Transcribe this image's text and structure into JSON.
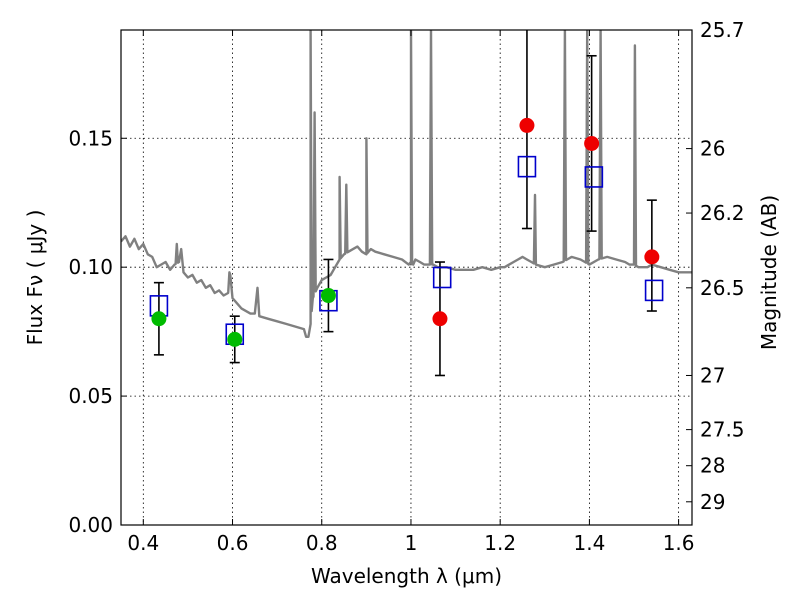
{
  "chart_data": {
    "type": "scatter",
    "xlabel": "Wavelength  λ (μm)",
    "ylabel": "Flux  Fν  ( μJy )",
    "ylabel_right": "Magnitude (AB)",
    "xlim": [
      0.35,
      1.63
    ],
    "ylim": [
      0.0,
      0.192
    ],
    "grid": true,
    "x_ticks": [
      0.4,
      0.6,
      0.8,
      1.0,
      1.2,
      1.4,
      1.6
    ],
    "x_tick_labels": [
      "0.4",
      "0.6",
      "0.8",
      "1",
      "1.2",
      "1.4",
      "1.6"
    ],
    "y_ticks": [
      0.0,
      0.05,
      0.1,
      0.15
    ],
    "y_tick_labels": [
      "0.00",
      "0.05",
      "0.10",
      "0.15"
    ],
    "right_ticks": [
      {
        "label": "25.7",
        "flux": 0.192
      },
      {
        "label": "26",
        "flux": 0.146
      },
      {
        "label": "26.2",
        "flux": 0.121
      },
      {
        "label": "26.5",
        "flux": 0.092
      },
      {
        "label": "27",
        "flux": 0.058
      },
      {
        "label": "27.5",
        "flux": 0.037
      },
      {
        "label": "28",
        "flux": 0.023
      },
      {
        "label": "29",
        "flux": 0.009
      }
    ],
    "series": [
      {
        "role": "template-spectrum",
        "color": "#808080",
        "x": [
          0.35,
          0.36,
          0.37,
          0.38,
          0.39,
          0.4,
          0.41,
          0.42,
          0.43,
          0.44,
          0.45,
          0.46,
          0.47,
          0.48,
          0.485,
          0.49,
          0.5,
          0.51,
          0.52,
          0.53,
          0.54,
          0.55,
          0.56,
          0.57,
          0.58,
          0.59,
          0.595,
          0.6,
          0.61,
          0.62,
          0.64,
          0.65,
          0.656,
          0.66,
          0.68,
          0.7,
          0.72,
          0.74,
          0.76,
          0.765,
          0.77,
          0.775,
          0.78,
          0.79,
          0.8,
          0.81,
          0.82,
          0.83,
          0.84,
          0.85,
          0.86,
          0.87,
          0.88,
          0.89,
          0.9,
          0.91,
          0.92,
          0.94,
          0.96,
          0.98,
          0.995,
          1.0,
          1.005,
          1.01,
          1.02,
          1.03,
          1.04,
          1.05,
          1.06,
          1.08,
          1.1,
          1.12,
          1.14,
          1.16,
          1.18,
          1.2,
          1.21,
          1.22,
          1.23,
          1.24,
          1.25,
          1.26,
          1.27,
          1.28,
          1.3,
          1.32,
          1.34,
          1.35,
          1.36,
          1.38,
          1.39,
          1.4,
          1.42,
          1.44,
          1.46,
          1.48,
          1.49,
          1.5,
          1.51,
          1.53,
          1.54,
          1.56,
          1.58,
          1.6,
          1.63
        ],
        "y": [
          0.11,
          0.112,
          0.108,
          0.111,
          0.107,
          0.109,
          0.105,
          0.104,
          0.1,
          0.101,
          0.102,
          0.099,
          0.101,
          0.102,
          0.107,
          0.098,
          0.096,
          0.097,
          0.094,
          0.095,
          0.092,
          0.093,
          0.09,
          0.091,
          0.089,
          0.09,
          0.097,
          0.088,
          0.086,
          0.084,
          0.082,
          0.082,
          0.092,
          0.081,
          0.08,
          0.079,
          0.078,
          0.077,
          0.076,
          0.073,
          0.073,
          0.078,
          0.088,
          0.092,
          0.095,
          0.096,
          0.097,
          0.1,
          0.103,
          0.105,
          0.106,
          0.107,
          0.108,
          0.106,
          0.105,
          0.107,
          0.106,
          0.105,
          0.104,
          0.103,
          0.101,
          0.102,
          0.101,
          0.103,
          0.102,
          0.101,
          0.101,
          0.101,
          0.1,
          0.1,
          0.099,
          0.099,
          0.099,
          0.1,
          0.099,
          0.1,
          0.1,
          0.101,
          0.102,
          0.103,
          0.104,
          0.103,
          0.102,
          0.101,
          0.1,
          0.101,
          0.102,
          0.103,
          0.104,
          0.103,
          0.102,
          0.101,
          0.103,
          0.104,
          0.103,
          0.102,
          0.101,
          0.101,
          0.1,
          0.1,
          0.101,
          0.1,
          0.099,
          0.098,
          0.098
        ],
        "emission_lines": [
          {
            "x": 0.475,
            "peak": 0.109
          },
          {
            "x": 0.593,
            "peak": 0.098
          },
          {
            "x": 0.775,
            "peak": 0.192
          },
          {
            "x": 0.784,
            "peak": 0.16
          },
          {
            "x": 0.84,
            "peak": 0.135
          },
          {
            "x": 0.855,
            "peak": 0.132
          },
          {
            "x": 0.9,
            "peak": 0.15
          },
          {
            "x": 1.0,
            "peak": 0.192
          },
          {
            "x": 1.045,
            "peak": 0.192
          },
          {
            "x": 1.278,
            "peak": 0.128
          },
          {
            "x": 1.345,
            "peak": 0.192
          },
          {
            "x": 1.395,
            "peak": 0.192
          },
          {
            "x": 1.425,
            "peak": 0.192
          },
          {
            "x": 1.502,
            "peak": 0.186
          }
        ]
      },
      {
        "role": "model-boxes",
        "color": "#0000cc",
        "x": [
          0.435,
          0.605,
          0.815,
          1.07,
          1.26,
          1.41,
          1.545
        ],
        "y": [
          0.085,
          0.074,
          0.087,
          0.096,
          0.139,
          0.135,
          0.091
        ]
      },
      {
        "role": "detections",
        "color": "#00bb00",
        "x": [
          0.435,
          0.605,
          0.815
        ],
        "y": [
          0.08,
          0.072,
          0.089
        ],
        "yerr": [
          0.014,
          0.009,
          0.014
        ]
      },
      {
        "role": "measurements",
        "color": "#ee0000",
        "x": [
          1.065,
          1.26,
          1.405,
          1.54
        ],
        "y": [
          0.08,
          0.155,
          0.148,
          0.104
        ],
        "yerr_hi_abs": [
          0.102,
          0.192,
          0.182,
          0.126
        ],
        "yerr_lo_abs": [
          0.058,
          0.115,
          0.114,
          0.083
        ]
      }
    ]
  }
}
